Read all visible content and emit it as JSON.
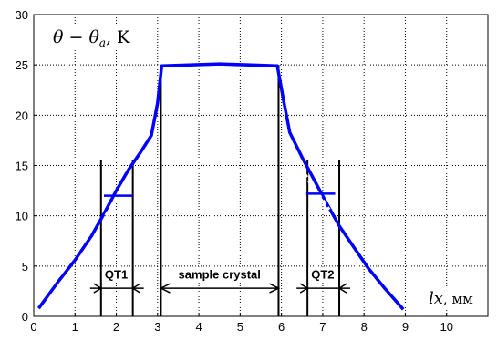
{
  "chart_data": {
    "type": "line",
    "title": "",
    "ylabel": "θ − θa, K",
    "ylabel_parts": {
      "theta": "θ",
      "minus": " − ",
      "theta2": "θ",
      "sub": "a",
      "unit": ", K"
    },
    "xlabel": "lx, мм",
    "xlabel_parts": {
      "var": "lx",
      "unit": ", мм"
    },
    "xlim": [
      0,
      11
    ],
    "ylim": [
      0,
      30
    ],
    "grid": true,
    "x_ticks": [
      0,
      1,
      2,
      3,
      4,
      5,
      6,
      7,
      8,
      9,
      10
    ],
    "y_ticks": [
      0,
      5,
      10,
      15,
      20,
      25,
      30
    ],
    "series": [
      {
        "color": "#0000ff",
        "x": [
          0.12,
          0.6,
          1.0,
          1.4,
          1.7,
          2.0,
          2.3,
          2.6,
          2.85,
          3.0,
          3.1,
          4.5,
          5.9,
          6.05,
          6.2,
          6.5,
          6.8,
          7.1,
          7.4,
          7.7,
          8.1,
          8.5,
          8.95
        ],
        "y": [
          0.8,
          3.5,
          5.6,
          8.0,
          10.2,
          12.5,
          14.6,
          16.4,
          18.0,
          21.2,
          24.9,
          25.1,
          24.9,
          21.5,
          18.3,
          15.8,
          13.5,
          11.2,
          9.0,
          7.2,
          4.8,
          2.8,
          0.7
        ]
      }
    ],
    "plateaus": [
      {
        "x": [
          1.7,
          2.4
        ],
        "y": 12.0
      },
      {
        "x": [
          6.6,
          7.3
        ],
        "y": 12.2
      }
    ],
    "dashed_segments": [
      {
        "x": [
          1.75,
          2.35
        ],
        "y": [
          10.0,
          14.0
        ]
      },
      {
        "x": [
          6.55,
          7.15
        ],
        "y": [
          14.2,
          10.6
        ]
      }
    ],
    "vertical_markers": [
      {
        "x": 1.63,
        "y": [
          0,
          15.5
        ]
      },
      {
        "x": 2.4,
        "y": [
          0,
          15.5
        ]
      },
      {
        "x": 3.08,
        "y": [
          0,
          25
        ]
      },
      {
        "x": 5.93,
        "y": [
          0,
          25
        ]
      },
      {
        "x": 6.63,
        "y": [
          0,
          15.5
        ]
      },
      {
        "x": 7.4,
        "y": [
          0,
          15.5
        ]
      }
    ],
    "annotations": [
      {
        "text": "QT1",
        "x": 2.0,
        "y": 4.2,
        "arrow_span": [
          1.63,
          2.4
        ],
        "arrow_y": 2.8,
        "arrow_style": "inward"
      },
      {
        "text": "sample  crystal",
        "x": 4.5,
        "y": 4.2,
        "arrow_span": [
          3.08,
          5.93
        ],
        "arrow_y": 2.8,
        "arrow_style": "outward"
      },
      {
        "text": "QT2",
        "x": 7.0,
        "y": 4.2,
        "arrow_span": [
          6.63,
          7.4
        ],
        "arrow_y": 2.8,
        "arrow_style": "inward"
      }
    ]
  }
}
